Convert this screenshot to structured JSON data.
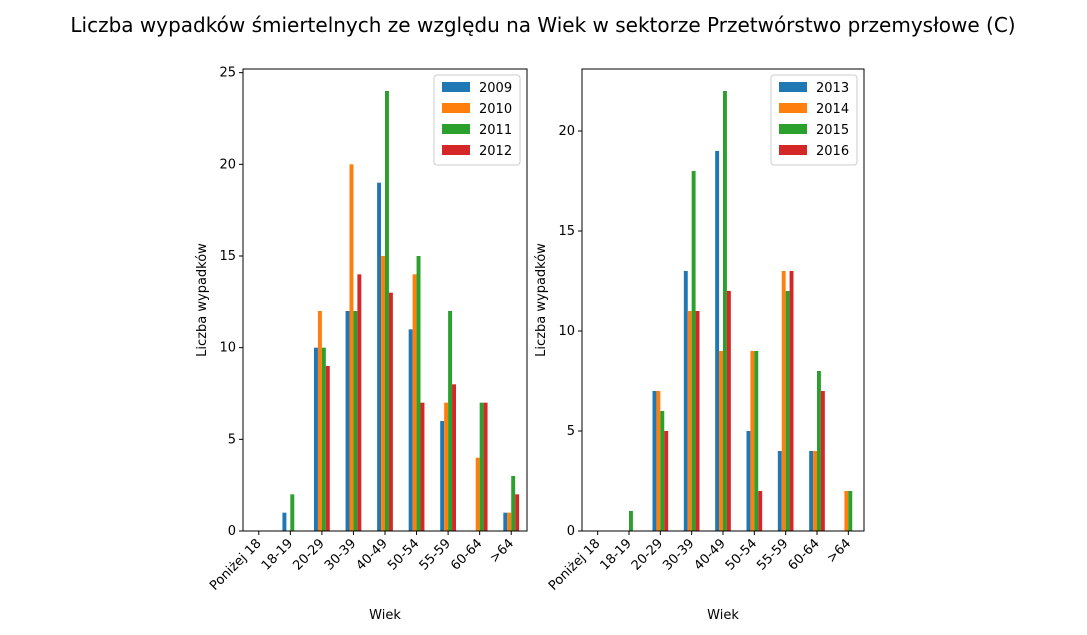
{
  "title": "Liczba wypadków śmiertelnych ze względu na Wiek w sektorze Przetwórstwo przemysłowe (C)",
  "colors": [
    "#1f77b4",
    "#ff7f0e",
    "#2ca02c",
    "#d62728"
  ],
  "chart_data": [
    {
      "type": "bar",
      "categories": [
        "Poniżej 18",
        "18-19",
        "20-29",
        "30-39",
        "40-49",
        "50-54",
        "55-59",
        "60-64",
        ">64"
      ],
      "xlabel": "Wiek",
      "ylabel": "Liczba wypadków",
      "ylim": [
        0,
        25.2
      ],
      "yticks": [
        0,
        5,
        10,
        15,
        20,
        25
      ],
      "legend": "top-right",
      "grid": false,
      "series": [
        {
          "name": "2009",
          "values": [
            0,
            1,
            10,
            12,
            19,
            11,
            6,
            0,
            1
          ]
        },
        {
          "name": "2010",
          "values": [
            0,
            0,
            12,
            20,
            15,
            14,
            7,
            4,
            1
          ]
        },
        {
          "name": "2011",
          "values": [
            0,
            2,
            10,
            12,
            24,
            15,
            12,
            7,
            3
          ]
        },
        {
          "name": "2012",
          "values": [
            0,
            0,
            9,
            14,
            13,
            7,
            8,
            7,
            2
          ]
        }
      ]
    },
    {
      "type": "bar",
      "categories": [
        "Poniżej 18",
        "18-19",
        "20-29",
        "30-39",
        "40-49",
        "50-54",
        "55-59",
        "60-64",
        ">64"
      ],
      "xlabel": "Wiek",
      "ylabel": "Liczba wypadków",
      "ylim": [
        0,
        23.1
      ],
      "yticks": [
        0,
        5,
        10,
        15,
        20
      ],
      "legend": "top-right",
      "grid": false,
      "series": [
        {
          "name": "2013",
          "values": [
            0,
            0,
            7,
            13,
            19,
            5,
            4,
            4,
            0
          ]
        },
        {
          "name": "2014",
          "values": [
            0,
            0,
            7,
            11,
            9,
            9,
            13,
            4,
            2
          ]
        },
        {
          "name": "2015",
          "values": [
            0,
            1,
            6,
            18,
            22,
            9,
            12,
            8,
            2
          ]
        },
        {
          "name": "2016",
          "values": [
            0,
            0,
            5,
            11,
            12,
            2,
            13,
            7,
            0
          ]
        }
      ]
    }
  ]
}
